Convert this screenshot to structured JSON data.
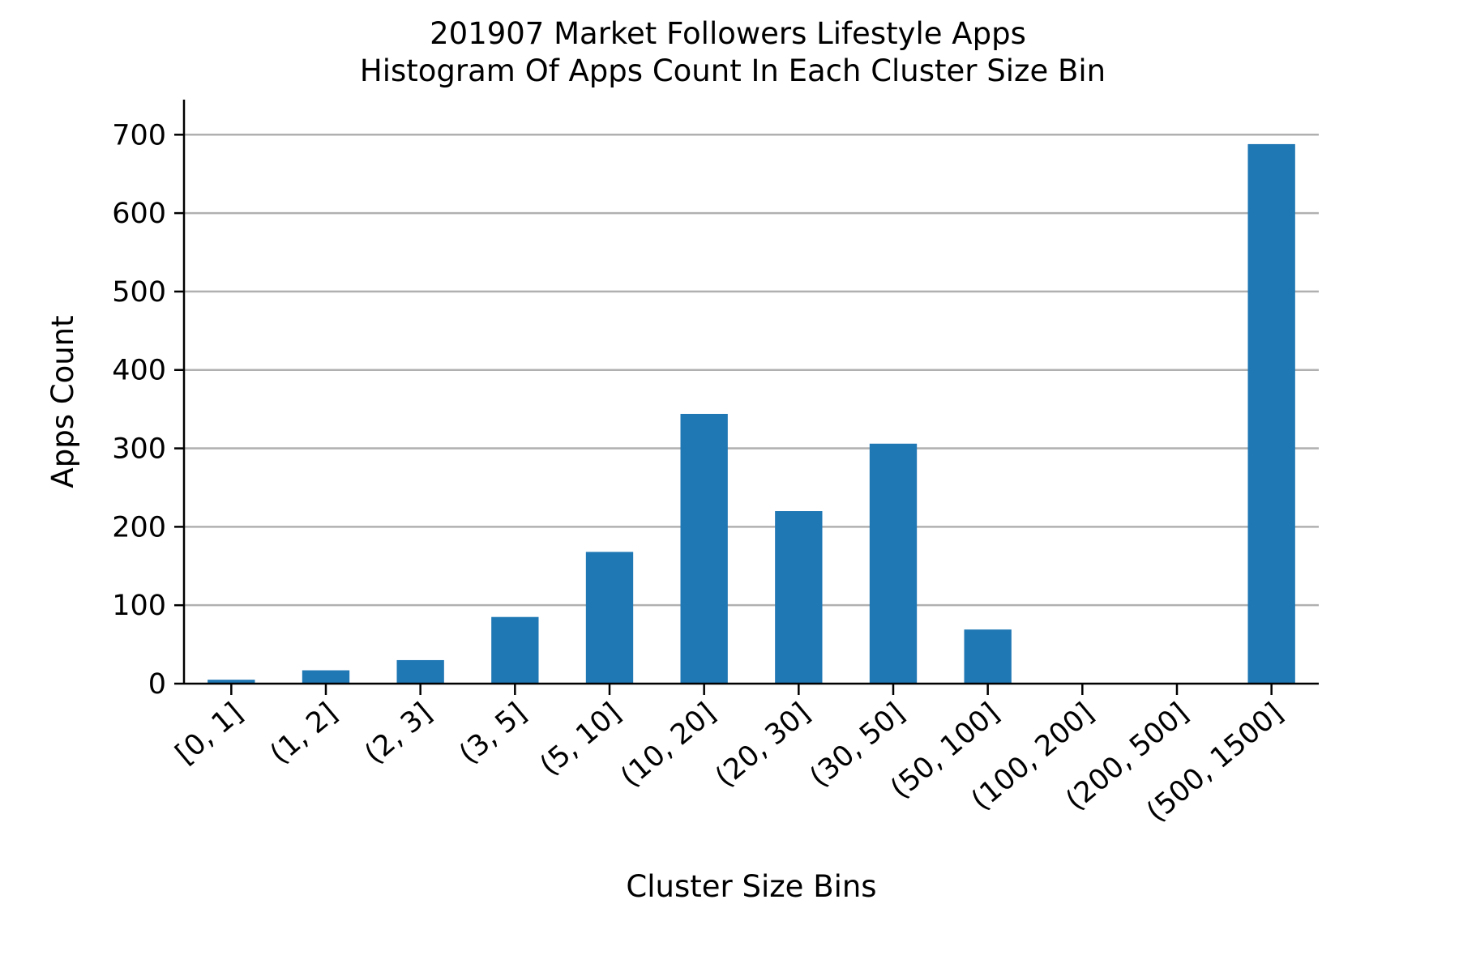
{
  "chart_data": {
    "type": "bar",
    "title": "201907 Market Followers Lifestyle Apps",
    "subtitle": "Histogram Of Apps Count In Each Cluster Size Bin",
    "xlabel": "Cluster Size Bins",
    "ylabel": "Apps Count",
    "categories": [
      "[0, 1]",
      "(1, 2]",
      "(2, 3]",
      "(3, 5]",
      "(5, 10]",
      "(10, 20]",
      "(20, 30]",
      "(30, 50]",
      "(50, 100]",
      "(100, 200]",
      "(200, 500]",
      "(500, 1500]"
    ],
    "values": [
      5,
      17,
      30,
      85,
      168,
      344,
      220,
      306,
      69,
      0,
      0,
      688
    ],
    "ylim": [
      0,
      722
    ],
    "yticks": [
      "0",
      "100",
      "200",
      "300",
      "400",
      "500",
      "600",
      "700"
    ],
    "grid": "horizontal",
    "legend": "none",
    "colors": {
      "bar": "#1f77b4",
      "grid": "#b0b0b0",
      "axis": "#000000"
    }
  }
}
